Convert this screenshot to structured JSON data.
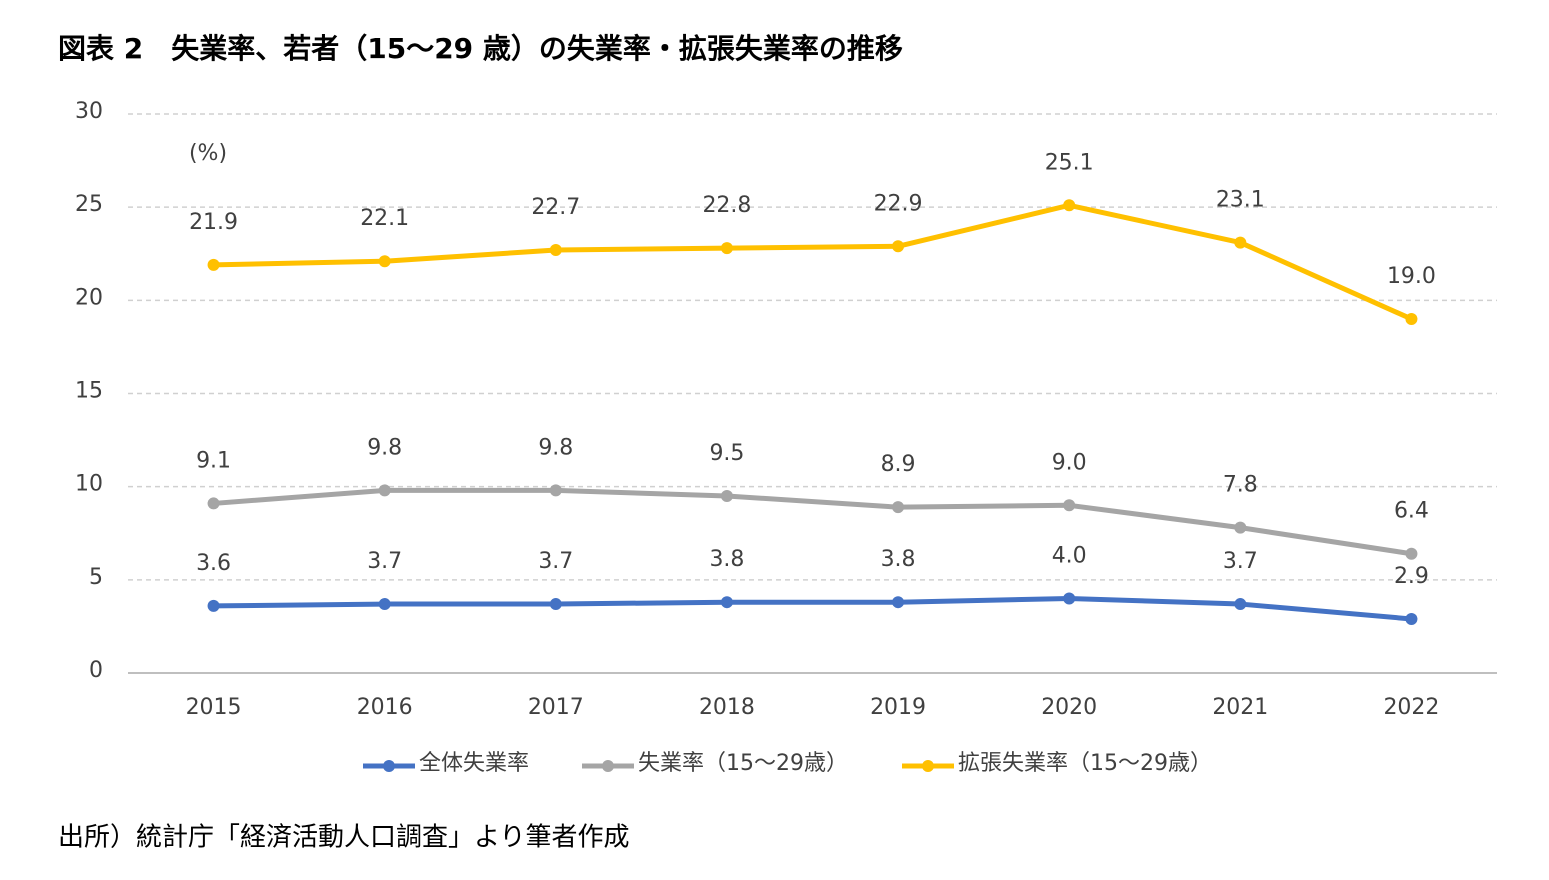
{
  "chart_data": {
    "type": "line",
    "title": "図表 2　失業率、若者（15～29 歳）の失業率・拡張失業率の推移",
    "unit_label": "(%)",
    "source": "出所）統計庁「経済活動人口調査」より筆者作成",
    "categories": [
      "2015",
      "2016",
      "2017",
      "2018",
      "2019",
      "2020",
      "2021",
      "2022"
    ],
    "series": [
      {
        "name": "全体失業率",
        "color": "#4472c4",
        "values": [
          3.6,
          3.7,
          3.7,
          3.8,
          3.8,
          4.0,
          3.7,
          2.9
        ],
        "value_labels": [
          "3.6",
          "3.7",
          "3.7",
          "3.8",
          "3.8",
          "4.0",
          "3.7",
          "2.9"
        ]
      },
      {
        "name": "失業率（15～29歳）",
        "color": "#a5a5a5",
        "values": [
          9.1,
          9.8,
          9.8,
          9.5,
          8.9,
          9.0,
          7.8,
          6.4
        ],
        "value_labels": [
          "9.1",
          "9.8",
          "9.8",
          "9.5",
          "8.9",
          "9.0",
          "7.8",
          "6.4"
        ]
      },
      {
        "name": "拡張失業率（15～29歳）",
        "color": "#ffc000",
        "values": [
          21.9,
          22.1,
          22.7,
          22.8,
          22.9,
          25.1,
          23.1,
          19.0
        ],
        "value_labels": [
          "21.9",
          "22.1",
          "22.7",
          "22.8",
          "22.9",
          "25.1",
          "23.1",
          "19.0"
        ]
      }
    ],
    "ylim": [
      0,
      30
    ],
    "yticks": [
      0,
      5,
      10,
      15,
      20,
      25,
      30
    ],
    "grid": true
  }
}
